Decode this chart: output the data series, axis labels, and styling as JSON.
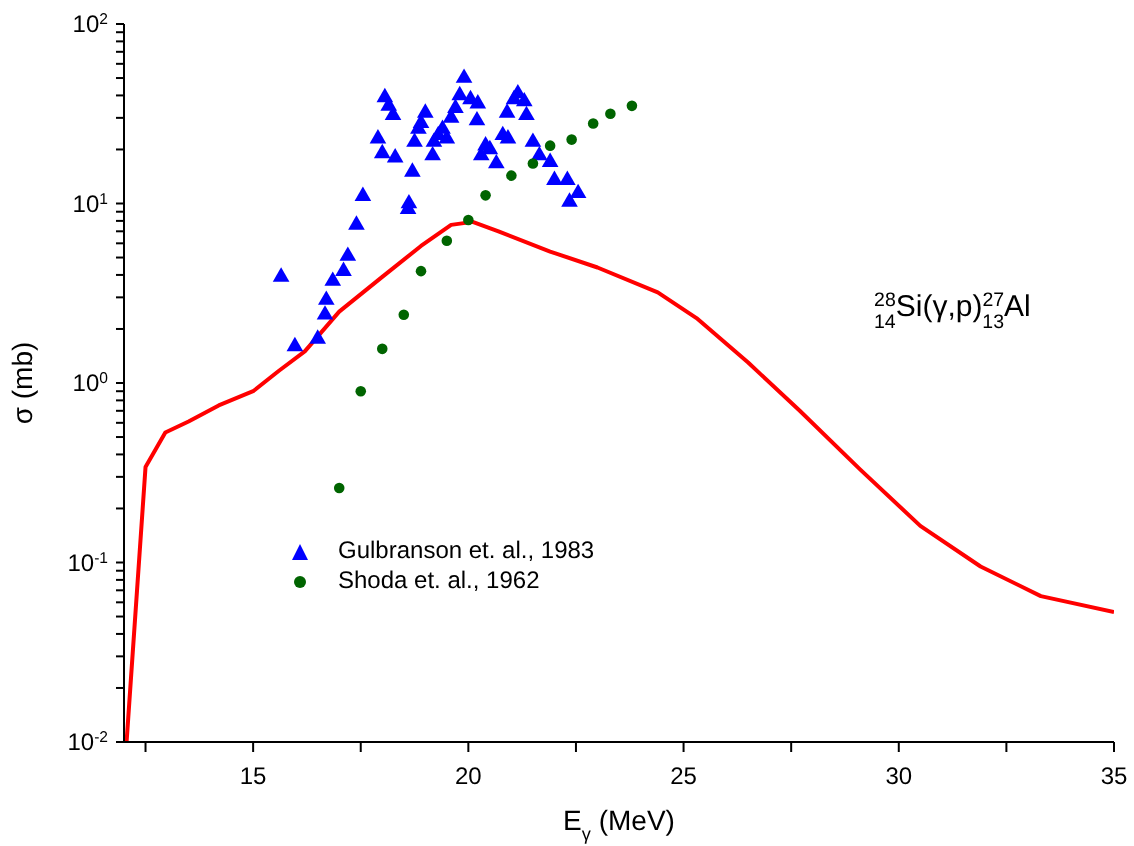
{
  "chart_data": {
    "type": "scatter",
    "xlabel": "E$_{γ}$ (MeV)",
    "ylabel": "σ (mb)",
    "annotations": [
      "$^{28}$$_{14}$Si(γ,p)$^{27}$$_{13}$Al"
    ],
    "log": "y",
    "grid": false,
    "legend": "bottom left",
    "xlim": [
      12,
      35
    ],
    "xticks": [
      {
        "value": 12.5,
        "label": null
      },
      15,
      {
        "value": 17.5,
        "label": null
      },
      20,
      {
        "value": 22.5,
        "label": null
      },
      25,
      {
        "value": 27.5,
        "label": null
      },
      30,
      {
        "value": 32.5,
        "label": null
      },
      35
    ],
    "ylim": [
      0.01,
      100
    ],
    "yticks": [
      {
        "value": 0.01,
        "label": "10$^{-2}$"
      },
      {
        "value": 0.02,
        "label": null
      },
      {
        "value": 0.03,
        "label": null
      },
      {
        "value": 0.04,
        "label": null
      },
      {
        "value": 0.05,
        "label": null
      },
      {
        "value": 0.06,
        "label": null
      },
      {
        "value": 0.07,
        "label": null
      },
      {
        "value": 0.08,
        "label": null
      },
      {
        "value": 0.09,
        "label": null
      },
      {
        "value": 0.1,
        "label": "10$^{-1}$"
      },
      {
        "value": 0.2,
        "label": null
      },
      {
        "value": 0.3,
        "label": null
      },
      {
        "value": 0.4,
        "label": null
      },
      {
        "value": 0.5,
        "label": null
      },
      {
        "value": 0.6,
        "label": null
      },
      {
        "value": 0.7,
        "label": null
      },
      {
        "value": 0.8,
        "label": null
      },
      {
        "value": 0.9,
        "label": null
      },
      {
        "value": 1,
        "label": "10$^{0}$"
      },
      {
        "value": 2,
        "label": null
      },
      {
        "value": 3,
        "label": null
      },
      {
        "value": 4,
        "label": null
      },
      {
        "value": 5,
        "label": null
      },
      {
        "value": 6,
        "label": null
      },
      {
        "value": 7,
        "label": null
      },
      {
        "value": 8,
        "label": null
      },
      {
        "value": 9,
        "label": null
      },
      {
        "value": 10,
        "label": "10$^{1}$"
      },
      {
        "value": 20,
        "label": null
      },
      {
        "value": 30,
        "label": null
      },
      {
        "value": 40,
        "label": null
      },
      {
        "value": 50,
        "label": null
      },
      {
        "value": 60,
        "label": null
      },
      {
        "value": 70,
        "label": null
      },
      {
        "value": 80,
        "label": null
      },
      {
        "value": 90,
        "label": null
      },
      {
        "value": 100,
        "label": "10$^{2}$"
      }
    ],
    "series": [
      {
        "name": "Gulbranson et. al., 1983",
        "marker": "triangle",
        "color": "#0000ff",
        "x": [
          15.65,
          15.97,
          16.5,
          16.67,
          16.7,
          16.85,
          17.1,
          17.2,
          17.4,
          17.55,
          17.9,
          18.0,
          18.06,
          18.15,
          18.25,
          18.3,
          18.6,
          18.62,
          18.7,
          18.75,
          18.84,
          18.9,
          19.0,
          19.17,
          19.2,
          19.3,
          19.4,
          19.5,
          19.6,
          19.7,
          19.8,
          19.9,
          20.05,
          20.2,
          20.22,
          20.3,
          20.4,
          20.5,
          20.65,
          20.8,
          20.9,
          20.92,
          21.06,
          21.15,
          21.3,
          21.35,
          21.5,
          21.65,
          21.9,
          22.0,
          22.3,
          22.35,
          22.55
        ],
        "values": [
          3.9,
          1.6,
          1.76,
          2.4,
          2.9,
          3.7,
          4.2,
          5.1,
          7.6,
          11,
          23,
          19,
          39,
          35,
          31,
          18,
          9.3,
          10,
          15,
          22,
          26,
          28,
          32,
          18.5,
          22,
          24,
          26,
          23,
          30,
          34,
          40,
          50,
          38,
          29,
          36,
          18.5,
          21,
          20,
          16.7,
          24,
          32,
          23,
          38,
          41,
          37,
          31,
          22,
          18.5,
          17,
          13.5,
          13.5,
          10.2,
          11.4
        ]
      },
      {
        "name": "Shoda et. al., 1962",
        "marker": "circle",
        "color": "#006400",
        "x": [
          17.0,
          17.5,
          18.0,
          18.5,
          18.9,
          19.5,
          20.0,
          20.4,
          21.0,
          21.5,
          21.9,
          22.4,
          22.9,
          23.3,
          23.8
        ],
        "values": [
          0.26,
          0.9,
          1.55,
          2.4,
          4.2,
          6.2,
          8.1,
          11.1,
          14.3,
          16.7,
          21,
          22.7,
          27.9,
          31.6,
          35
        ]
      },
      {
        "type": "line",
        "marker": "none",
        "line_style": "solid",
        "color": "#ff0000",
        "x": [
          12.06,
          12.5,
          12.96,
          13.5,
          14.2,
          15.0,
          15.6,
          16.2,
          17.0,
          18.0,
          18.9,
          19.6,
          20.1,
          20.7,
          21.9,
          23.0,
          24.4,
          25.3,
          26.5,
          27.7,
          29.1,
          30.5,
          31.9,
          33.3,
          35.0
        ],
        "values": [
          0.01,
          0.34,
          0.53,
          0.61,
          0.75,
          0.9,
          1.17,
          1.5,
          2.5,
          3.9,
          5.8,
          7.6,
          7.9,
          7.0,
          5.4,
          4.4,
          3.2,
          2.3,
          1.3,
          0.7,
          0.33,
          0.16,
          0.095,
          0.065,
          0.053
        ]
      }
    ]
  }
}
